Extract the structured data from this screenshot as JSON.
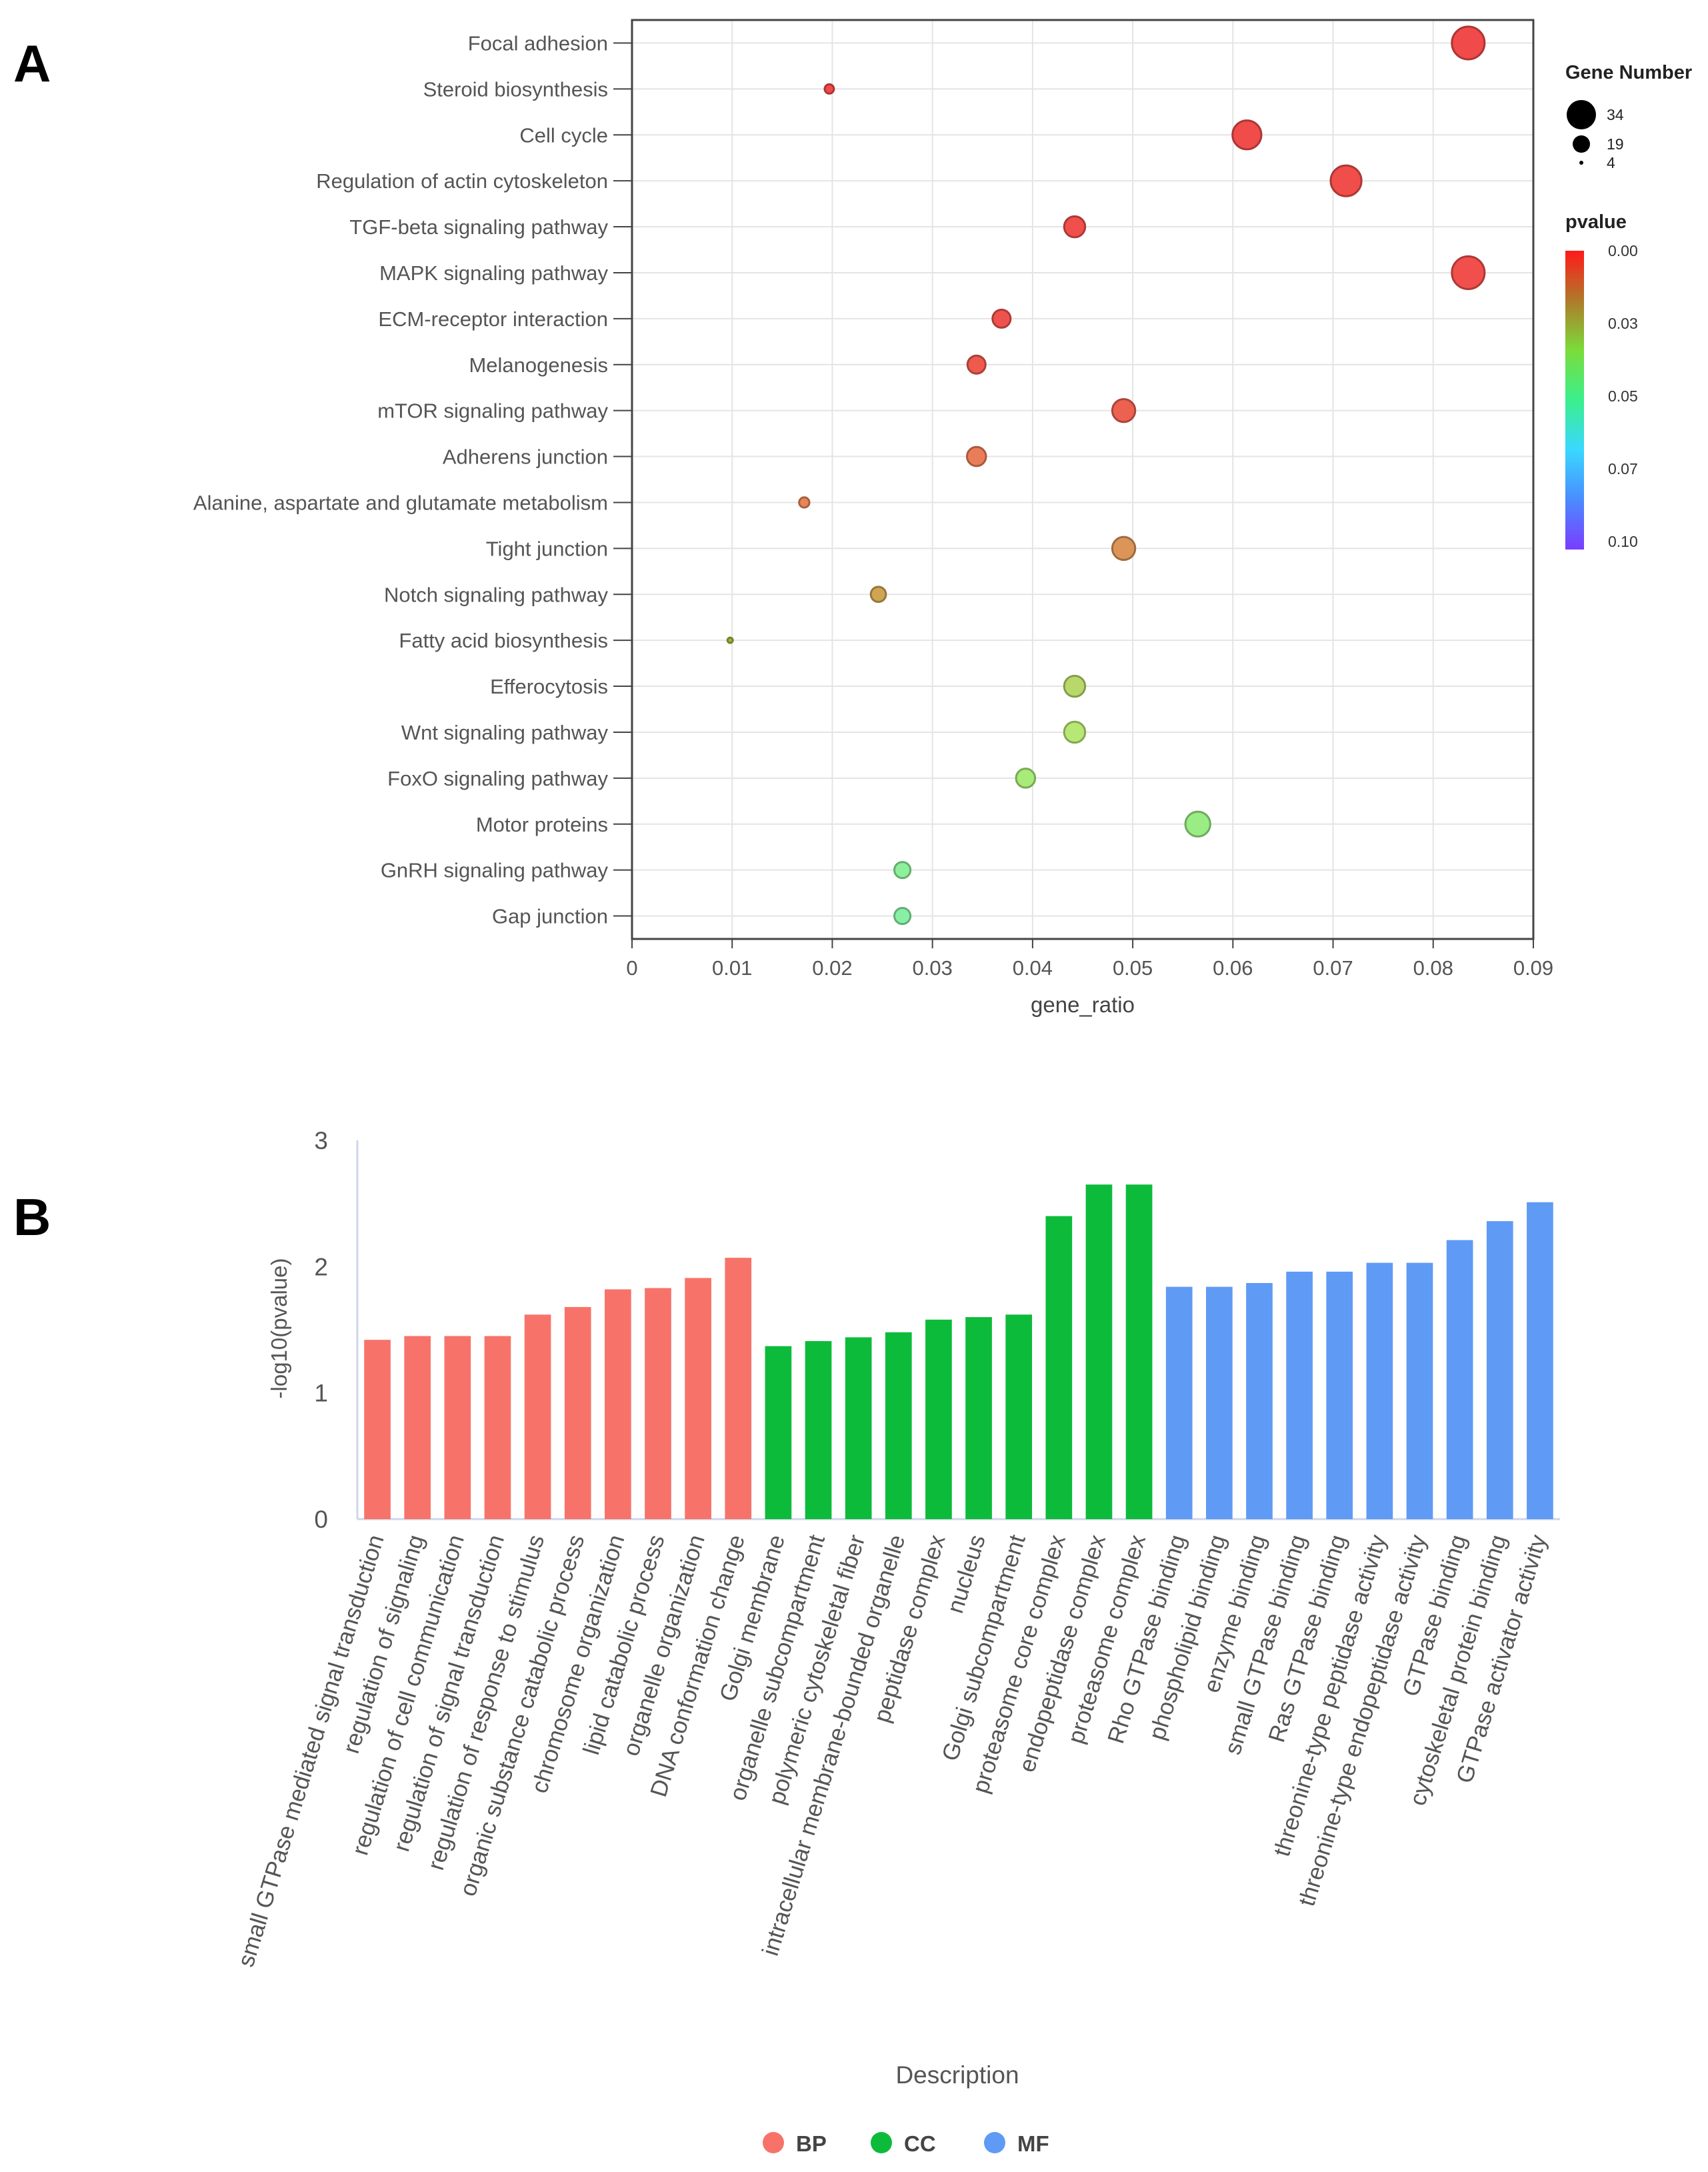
{
  "panels": {
    "a_label": "A",
    "b_label": "B"
  },
  "chart_data": [
    {
      "type": "scatter",
      "panel": "A",
      "title": "",
      "xlabel": "gene_ratio",
      "ylabel": "",
      "xlim": [
        0,
        0.09
      ],
      "xticks": [
        0,
        0.01,
        0.02,
        0.03,
        0.04,
        0.05,
        0.06,
        0.07,
        0.08,
        0.09
      ],
      "xtick_labels": [
        "0",
        "0.01",
        "0.02",
        "0.03",
        "0.04",
        "0.05",
        "0.06",
        "0.07",
        "0.08",
        "0.09"
      ],
      "grid": true,
      "points": [
        {
          "term": "Focal adhesion",
          "gene_ratio": 0.0835,
          "gene_number": 32,
          "pvalue": 0.0,
          "color": "#f04a4a"
        },
        {
          "term": "Steroid biosynthesis",
          "gene_ratio": 0.0197,
          "gene_number": 8,
          "pvalue": 0.001,
          "color": "#f04a4a"
        },
        {
          "term": "Cell cycle",
          "gene_ratio": 0.0614,
          "gene_number": 28,
          "pvalue": 0.002,
          "color": "#f04c4a"
        },
        {
          "term": "Regulation of actin cytoskeleton",
          "gene_ratio": 0.0713,
          "gene_number": 30,
          "pvalue": 0.003,
          "color": "#f04e4a"
        },
        {
          "term": "TGF-beta signaling pathway",
          "gene_ratio": 0.0442,
          "gene_number": 20,
          "pvalue": 0.004,
          "color": "#f04f4b"
        },
        {
          "term": "MAPK signaling pathway",
          "gene_ratio": 0.0835,
          "gene_number": 32,
          "pvalue": 0.005,
          "color": "#f04f4b"
        },
        {
          "term": "ECM-receptor interaction",
          "gene_ratio": 0.0369,
          "gene_number": 17,
          "pvalue": 0.006,
          "color": "#ef524c"
        },
        {
          "term": "Melanogenesis",
          "gene_ratio": 0.0344,
          "gene_number": 17,
          "pvalue": 0.008,
          "color": "#ee5a4e"
        },
        {
          "term": "mTOR signaling pathway",
          "gene_ratio": 0.0491,
          "gene_number": 22,
          "pvalue": 0.01,
          "color": "#ec6150"
        },
        {
          "term": "Adherens junction",
          "gene_ratio": 0.0344,
          "gene_number": 18,
          "pvalue": 0.013,
          "color": "#ea7d57"
        },
        {
          "term": "Alanine, aspartate and glutamate metabolism",
          "gene_ratio": 0.0172,
          "gene_number": 9,
          "pvalue": 0.015,
          "color": "#e88658"
        },
        {
          "term": "Tight junction",
          "gene_ratio": 0.0491,
          "gene_number": 22,
          "pvalue": 0.018,
          "color": "#dc9559"
        },
        {
          "term": "Notch signaling pathway",
          "gene_ratio": 0.0246,
          "gene_number": 14,
          "pvalue": 0.02,
          "color": "#cfa553"
        },
        {
          "term": "Fatty acid biosynthesis",
          "gene_ratio": 0.0098,
          "gene_number": 4,
          "pvalue": 0.024,
          "color": "#a6b33a"
        },
        {
          "term": "Efferocytosis",
          "gene_ratio": 0.0442,
          "gene_number": 20,
          "pvalue": 0.028,
          "color": "#b9d86a"
        },
        {
          "term": "Wnt signaling pathway",
          "gene_ratio": 0.0442,
          "gene_number": 20,
          "pvalue": 0.031,
          "color": "#b8e874"
        },
        {
          "term": "FoxO signaling pathway",
          "gene_ratio": 0.0393,
          "gene_number": 18,
          "pvalue": 0.034,
          "color": "#a8eb78"
        },
        {
          "term": "Motor proteins",
          "gene_ratio": 0.0565,
          "gene_number": 24,
          "pvalue": 0.038,
          "color": "#9aec84"
        },
        {
          "term": "GnRH signaling pathway",
          "gene_ratio": 0.027,
          "gene_number": 15,
          "pvalue": 0.041,
          "color": "#8ef09a"
        },
        {
          "term": "Gap junction",
          "gene_ratio": 0.027,
          "gene_number": 15,
          "pvalue": 0.043,
          "color": "#88f0a4"
        }
      ],
      "size_legend": {
        "title": "Gene Number",
        "entries": [
          {
            "label": "34",
            "value": 34
          },
          {
            "label": "19",
            "value": 19
          },
          {
            "label": "4",
            "value": 4
          }
        ]
      },
      "color_legend": {
        "title": "pvalue",
        "tick_labels": [
          "0.00",
          "0.03",
          "0.05",
          "0.07",
          "0.10"
        ],
        "gradient": [
          "#ff1a1a",
          "#b07a2a",
          "#7bdc3a",
          "#3af08c",
          "#39d8ff",
          "#4a8cff",
          "#7a3cff"
        ]
      }
    },
    {
      "type": "bar",
      "panel": "B",
      "title": "",
      "xlabel": "Description",
      "ylabel": "-log10(pvalue)",
      "ylim": [
        0,
        3
      ],
      "yticks": [
        "0",
        "1",
        "2",
        "3"
      ],
      "grid": false,
      "bars": [
        {
          "label": "small GTPase mediated signal transduction",
          "value": 1.42,
          "group": "BP"
        },
        {
          "label": "regulation of signaling",
          "value": 1.45,
          "group": "BP"
        },
        {
          "label": "regulation of cell communication",
          "value": 1.45,
          "group": "BP"
        },
        {
          "label": "regulation of signal transduction",
          "value": 1.45,
          "group": "BP"
        },
        {
          "label": "regulation of response to stimulus",
          "value": 1.62,
          "group": "BP"
        },
        {
          "label": "organic substance catabolic process",
          "value": 1.68,
          "group": "BP"
        },
        {
          "label": "chromosome organization",
          "value": 1.82,
          "group": "BP"
        },
        {
          "label": "lipid catabolic process",
          "value": 1.83,
          "group": "BP"
        },
        {
          "label": "organelle organization",
          "value": 1.91,
          "group": "BP"
        },
        {
          "label": "DNA conformation change",
          "value": 2.07,
          "group": "BP"
        },
        {
          "label": "Golgi membrane",
          "value": 1.37,
          "group": "CC"
        },
        {
          "label": "organelle subcompartment",
          "value": 1.41,
          "group": "CC"
        },
        {
          "label": "polymeric cytoskeletal fiber",
          "value": 1.44,
          "group": "CC"
        },
        {
          "label": "intracellular membrane-bounded organelle",
          "value": 1.48,
          "group": "CC"
        },
        {
          "label": "peptidase complex",
          "value": 1.58,
          "group": "CC"
        },
        {
          "label": "nucleus",
          "value": 1.6,
          "group": "CC"
        },
        {
          "label": "Golgi subcompartment",
          "value": 1.62,
          "group": "CC"
        },
        {
          "label": "proteasome core complex",
          "value": 2.4,
          "group": "CC"
        },
        {
          "label": "endopeptidase complex",
          "value": 2.65,
          "group": "CC"
        },
        {
          "label": "proteasome complex",
          "value": 2.65,
          "group": "CC"
        },
        {
          "label": "Rho GTPase binding",
          "value": 1.84,
          "group": "MF"
        },
        {
          "label": "phospholipid binding",
          "value": 1.84,
          "group": "MF"
        },
        {
          "label": "enzyme binding",
          "value": 1.87,
          "group": "MF"
        },
        {
          "label": "small GTPase binding",
          "value": 1.96,
          "group": "MF"
        },
        {
          "label": "Ras GTPase binding",
          "value": 1.96,
          "group": "MF"
        },
        {
          "label": "threonine-type peptidase activity",
          "value": 2.03,
          "group": "MF"
        },
        {
          "label": "threonine-type endopeptidase activity",
          "value": 2.03,
          "group": "MF"
        },
        {
          "label": "GTPase binding",
          "value": 2.21,
          "group": "MF"
        },
        {
          "label": "cytoskeletal protein binding",
          "value": 2.36,
          "group": "MF"
        },
        {
          "label": "GTPase activator activity",
          "value": 2.51,
          "group": "MF"
        }
      ],
      "group_colors": {
        "BP": "#f7736a",
        "CC": "#0dbb3a",
        "MF": "#5f9af5"
      },
      "legend": [
        {
          "key": "BP",
          "label": "BP",
          "color": "#f7736a"
        },
        {
          "key": "CC",
          "label": "CC",
          "color": "#0dbb3a"
        },
        {
          "key": "MF",
          "label": "MF",
          "color": "#5f9af5"
        }
      ]
    }
  ]
}
